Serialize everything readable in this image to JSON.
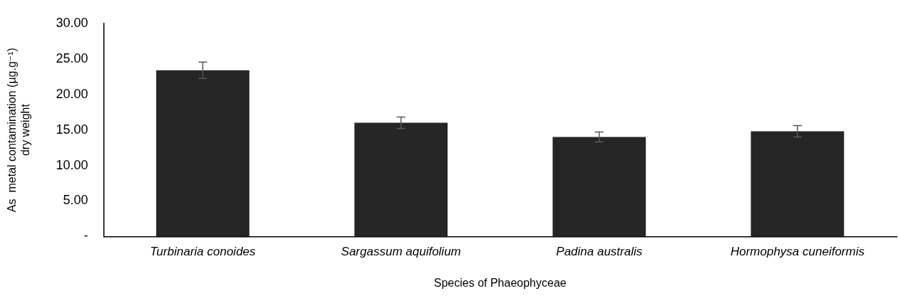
{
  "chart_data": {
    "type": "bar",
    "xlabel": "Species of Phaeophyceae",
    "ylabel": "As  metal contamination (µg.g⁻¹)\ndry weight",
    "categories": [
      "Turbinaria conoides",
      "Sargassum aquifolium",
      "Padina australis",
      "Hormophysa cuneiformis"
    ],
    "values": [
      23.4,
      16.0,
      14.0,
      14.8
    ],
    "errors": [
      1.15,
      0.8,
      0.7,
      0.8
    ],
    "color": "#262626",
    "ylim": [
      0,
      30
    ],
    "yticks": [
      {
        "value": 0,
        "label": "-"
      },
      {
        "value": 5,
        "label": "5.00"
      },
      {
        "value": 10,
        "label": "10.00"
      },
      {
        "value": 15,
        "label": "15.00"
      },
      {
        "value": 20,
        "label": "20.00"
      },
      {
        "value": 25,
        "label": "25.00"
      },
      {
        "value": 30,
        "label": "30.00"
      }
    ],
    "grid": false,
    "legend": false
  }
}
